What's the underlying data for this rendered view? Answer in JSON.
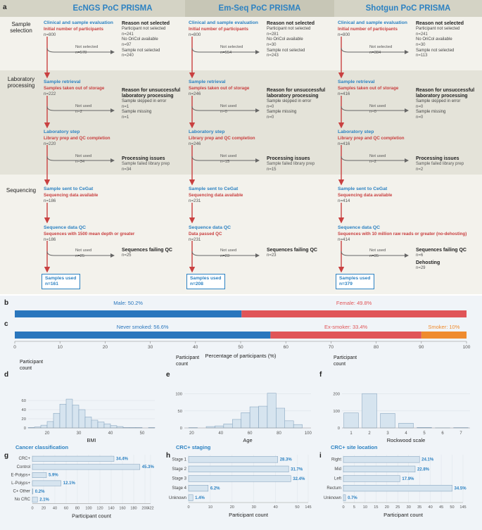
{
  "panels": {
    "a": "a",
    "b": "b",
    "c": "c",
    "d": "d",
    "e": "e",
    "f": "f",
    "g": "g",
    "h": "h",
    "i": "i"
  },
  "columns": [
    {
      "header": "EcNGS PoC PRISMA",
      "eval_title": "Clinical and sample evaluation",
      "eval_sub": "Initial number of participants",
      "eval_n": "n=800",
      "ns_label": "Not selected",
      "ns_n": "n=578",
      "reason_title": "Reason not selected",
      "reasons": [
        "Participant not selected",
        "n=241",
        "No OriCol available",
        "n=97",
        "Sample not selected",
        "n=240"
      ],
      "ret_title": "Sample retrieval",
      "ret_sub": "Samples taken out of storage",
      "ret_n": "n=222",
      "nu1_label": "Not used",
      "nu1_n": "n=2",
      "unsucc_title": "Reason for unsuccessful laboratory processing",
      "unsucc": [
        "Sample skipped in error",
        "n=1",
        "Sample missing",
        "n=1"
      ],
      "lab_title": "Laboratory step",
      "lab_sub": "Library prep and QC completion",
      "lab_n": "n=220",
      "nu2_label": "Not used",
      "nu2_n": "n=34",
      "proc_title": "Processing issues",
      "proc": [
        "Sample failed library prep",
        "n=34"
      ],
      "seq_title": "Sample sent to CeGat",
      "seq_sub": "Sequencing data available",
      "seq_n": "n=186",
      "qc_title": "Sequence data QC",
      "qc_sub": "Sequences with 1500 mean depth or greater",
      "qc_n": "n=186",
      "nu3_label": "Not used",
      "nu3_n": "n=25",
      "fail_title": "Sequences failing QC",
      "fail": [
        "n=25"
      ],
      "extra_title": "",
      "extra": [],
      "used_label": "Samples used",
      "used_n": "n=161"
    },
    {
      "header": "Em-Seq PoC PRISMA",
      "eval_title": "Clinical and sample evaluation",
      "eval_sub": "Initial number of participants",
      "eval_n": "n=800",
      "ns_label": "Not selected",
      "ns_n": "n=554",
      "reason_title": "Reason not selected",
      "reasons": [
        "Participant not selected",
        "n=281",
        "No OriCol available",
        "n=30",
        "Sample not selected",
        "n=243"
      ],
      "ret_title": "Sample retrieval",
      "ret_sub": "Samples taken out of storage",
      "ret_n": "n=246",
      "nu1_label": "Not used",
      "nu1_n": "n=0",
      "unsucc_title": "Reason for unsuccessful laboratory processing",
      "unsucc": [
        "Sample skipped in error",
        "n=0",
        "Sample missing",
        "n=0"
      ],
      "lab_title": "Laboratory step",
      "lab_sub": "Library prep and QC completion",
      "lab_n": "n=246",
      "nu2_label": "Not used",
      "nu2_n": "n=15",
      "proc_title": "Processing issues",
      "proc": [
        "Sample failed library prep",
        "n=15"
      ],
      "seq_title": "Sample sent to CeGat",
      "seq_sub": "Sequencing data available",
      "seq_n": "n=231",
      "qc_title": "Sequence data QC",
      "qc_sub": "Data passed QC",
      "qc_n": "n=231",
      "nu3_label": "Not used",
      "nu3_n": "n=23",
      "fail_title": "Sequences failing QC",
      "fail": [
        "n=23"
      ],
      "extra_title": "",
      "extra": [],
      "used_label": "Samples used",
      "used_n": "n=208"
    },
    {
      "header": "Shotgun PoC PRISMA",
      "eval_title": "Clinical and sample evaluation",
      "eval_sub": "Initial number of participants",
      "eval_n": "n=800",
      "ns_label": "Not selected",
      "ns_n": "n=384",
      "reason_title": "Reason not selected",
      "reasons": [
        "Participant not selected",
        "n=241",
        "No OriCol available",
        "n=30",
        "Sample not selected",
        "n=113"
      ],
      "ret_title": "Sample retrieval",
      "ret_sub": "Samples taken out of storage",
      "ret_n": "n=416",
      "nu1_label": "Not used",
      "nu1_n": "n=0",
      "unsucc_title": "Reason for unsuccessful laboratory processing",
      "unsucc": [
        "Sample skipped in error",
        "n=0",
        "Sample missing",
        "n=0"
      ],
      "lab_title": "Laboratory step",
      "lab_sub": "Library prep and QC completion",
      "lab_n": "n=416",
      "nu2_label": "Not used",
      "nu2_n": "n=2",
      "proc_title": "Processing issues",
      "proc": [
        "Sample failed library prep",
        "n=2"
      ],
      "seq_title": "Sample sent to CeGat",
      "seq_sub": "Sequencing data available",
      "seq_n": "n=414",
      "qc_title": "Sequence data QC",
      "qc_sub": "Sequences with 10 million raw reads or greater (no-dehosting)",
      "qc_n": "n=414",
      "nu3_label": "Not used",
      "nu3_n": "n=35",
      "fail_title": "Sequences failing QC",
      "fail": [
        "n=6"
      ],
      "extra_title": "Dehosting",
      "extra": [
        "n=29"
      ],
      "used_label": "Samples used",
      "used_n": "n=379"
    }
  ],
  "row_labels": [
    "Sample selection",
    "Laboratory processing",
    "Sequencing"
  ],
  "colors": {
    "blue": "#2d82c2",
    "red": "#c94040",
    "bar_blue": "#2a76bd",
    "bar_red": "#e05558",
    "bar_orange": "#ef8b2d",
    "hist_fill": "#d6e4ef",
    "hist_stroke": "#7a9bb8",
    "band": "#e7e6dd",
    "header_band": "#d4d3c5",
    "bottom_bg": "#eef3f7"
  },
  "chart_data": [
    {
      "panel": "b",
      "type": "bar",
      "orientation": "stacked-horizontal",
      "series": [
        {
          "name": "Male",
          "value": 50.2,
          "label": "Male: 50.2%"
        },
        {
          "name": "Female",
          "value": 49.8,
          "label": "Female: 49.8%"
        }
      ]
    },
    {
      "panel": "c",
      "type": "bar",
      "orientation": "stacked-horizontal",
      "series": [
        {
          "name": "Never smoked",
          "value": 56.6,
          "label": "Never smoked: 56.6%"
        },
        {
          "name": "Ex-smoker",
          "value": 33.4,
          "label": "Ex-smoker: 33.4%"
        },
        {
          "name": "Smoker",
          "value": 10,
          "label": "Smoker: 10%"
        }
      ],
      "xlabel": "Percentage of participants (%)",
      "xlim": [
        0,
        100
      ],
      "ticks": [
        "0",
        "10",
        "20",
        "30",
        "40",
        "50",
        "60",
        "70",
        "80",
        "90",
        "100"
      ]
    },
    {
      "panel": "d",
      "type": "bar",
      "title": "Participant count",
      "xlabel": "BMI",
      "xlim": [
        14,
        54
      ],
      "ylim": [
        0,
        80
      ],
      "yticks": [
        "0",
        "20",
        "40",
        "60"
      ],
      "xticks": [
        "20",
        "30",
        "40",
        "50"
      ],
      "bins": [
        [
          14,
          16,
          1
        ],
        [
          16,
          18,
          2
        ],
        [
          18,
          20,
          6
        ],
        [
          20,
          22,
          14
        ],
        [
          22,
          24,
          32
        ],
        [
          24,
          26,
          52
        ],
        [
          26,
          28,
          63
        ],
        [
          28,
          30,
          50
        ],
        [
          30,
          32,
          40
        ],
        [
          32,
          34,
          24
        ],
        [
          34,
          36,
          17
        ],
        [
          36,
          38,
          13
        ],
        [
          38,
          40,
          9
        ],
        [
          40,
          42,
          5
        ],
        [
          42,
          44,
          3
        ],
        [
          44,
          46,
          1
        ],
        [
          46,
          48,
          1
        ],
        [
          48,
          50,
          1
        ],
        [
          52,
          54,
          1
        ]
      ]
    },
    {
      "panel": "e",
      "type": "bar",
      "title": "Participant count",
      "xlabel": "Age",
      "xlim": [
        15,
        102
      ],
      "ylim": [
        0,
        120
      ],
      "yticks": [
        "0",
        "50",
        "100"
      ],
      "xticks": [
        "20",
        "40",
        "60",
        "80",
        "100"
      ],
      "bins": [
        [
          18,
          24,
          1
        ],
        [
          30,
          36,
          4
        ],
        [
          36,
          42,
          6
        ],
        [
          42,
          48,
          12
        ],
        [
          48,
          54,
          25
        ],
        [
          54,
          60,
          45
        ],
        [
          60,
          66,
          62
        ],
        [
          66,
          72,
          64
        ],
        [
          72,
          78,
          102
        ],
        [
          78,
          84,
          58
        ],
        [
          84,
          90,
          21
        ],
        [
          90,
          96,
          10
        ]
      ]
    },
    {
      "panel": "f",
      "type": "bar",
      "title": "Participant count",
      "xlabel": "Rockwood scale",
      "categories": [
        "1",
        "2",
        "3",
        "4",
        "5",
        "6",
        "7"
      ],
      "values": [
        88,
        202,
        85,
        28,
        3,
        1,
        2
      ],
      "ylim": [
        0,
        240
      ],
      "yticks": [
        "0",
        "100",
        "200"
      ]
    },
    {
      "panel": "g",
      "type": "bar",
      "orientation": "horizontal",
      "title": "Cancer classification",
      "xlabel": "Participant count",
      "categories": [
        "CRC+",
        "Control",
        "E-Polyps+",
        "L-Polyps+",
        "C+ Other",
        "No CRC"
      ],
      "values": [
        145,
        191,
        25,
        51,
        1,
        9
      ],
      "labels": [
        "34.4%",
        "45.3%",
        "5.9%",
        "12.1%",
        "0.2%",
        "2.1%"
      ],
      "xlim": [
        0,
        210
      ],
      "xticks": [
        "0",
        "20",
        "40",
        "60",
        "80",
        "100",
        "120",
        "140",
        "160",
        "180",
        "200",
        "422"
      ]
    },
    {
      "panel": "h",
      "type": "bar",
      "orientation": "horizontal",
      "title": "CRC+ staging",
      "xlabel": "Participant count",
      "categories": [
        "Stage 1",
        "Stage 2",
        "Stage 3",
        "Stage 4",
        "Unknown"
      ],
      "values": [
        41,
        46,
        47,
        9,
        2
      ],
      "labels": [
        "28.3%",
        "31.7%",
        "32.4%",
        "6.2%",
        "1.4%"
      ],
      "xlim": [
        0,
        55
      ],
      "xticks": [
        "0",
        "10",
        "20",
        "30",
        "40",
        "50",
        "145"
      ]
    },
    {
      "panel": "i",
      "type": "bar",
      "orientation": "horizontal",
      "title": "CRC+ site location",
      "xlabel": "Participant count",
      "categories": [
        "Right",
        "Mid",
        "Left",
        "Rectum",
        "Unknown"
      ],
      "values": [
        35,
        33,
        26,
        50,
        1
      ],
      "labels": [
        "24.1%",
        "22.8%",
        "17.9%",
        "34.5%",
        "0.7%"
      ],
      "xlim": [
        0,
        55
      ],
      "xticks": [
        "0",
        "5",
        "10",
        "15",
        "20",
        "25",
        "30",
        "35",
        "40",
        "45",
        "50",
        "145"
      ]
    }
  ]
}
